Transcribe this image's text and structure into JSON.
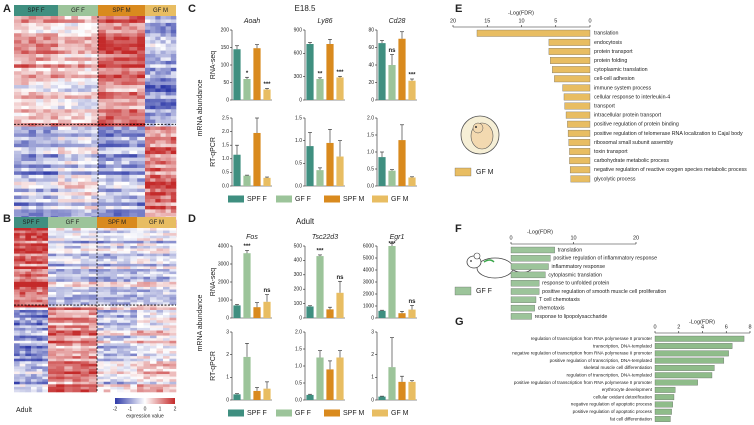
{
  "panel_labels": [
    "A",
    "B",
    "C",
    "D",
    "E",
    "F",
    "G"
  ],
  "heatmaps": [
    {
      "groups": [
        "SPF F",
        "GF F",
        "SPF M",
        "GF M"
      ],
      "stage": "E18.5",
      "colorbar_ticks": [
        -2,
        -1,
        0,
        1,
        2
      ],
      "colorbar_title": "expression value"
    },
    {
      "groups": [
        "SPF F",
        "GF F",
        "SPF M",
        "GF M"
      ],
      "stage": "Adult",
      "colorbar_ticks": [
        -2,
        -1,
        0,
        1,
        2
      ],
      "colorbar_title": "expression value"
    }
  ],
  "bar_panels": [
    {
      "title": "E18.5",
      "y_title": "mRNA abundance",
      "row_labels": [
        "RNA-seq",
        "RT-qPCR"
      ],
      "legend": [
        "SPF F",
        "GF F",
        "SPF M",
        "GF M"
      ],
      "colors": [
        "#3f8f80",
        "#9cc49a",
        "#d98a1e",
        "#e8bd62"
      ]
    },
    {
      "title": "Adult",
      "y_title": "mRNA abundance",
      "row_labels": [
        "RNA-seq",
        "RT-qPCR"
      ],
      "legend": [
        "SPF F",
        "GF F",
        "SPF M",
        "GF M"
      ],
      "colors": [
        "#3f8f80",
        "#9cc49a",
        "#d98a1e",
        "#e8bd62"
      ]
    }
  ],
  "chart_data": [
    {
      "type": "bar",
      "title": "Aoah",
      "values": [
        145,
        60,
        148,
        30
      ],
      "errors": [
        10,
        5,
        10,
        3
      ],
      "annotations": [
        null,
        "*",
        null,
        "***"
      ],
      "ylim": [
        0,
        200
      ],
      "yticks": [
        0,
        50,
        100,
        150,
        200
      ]
    },
    {
      "type": "bar",
      "title": "Ly86",
      "values": [
        720,
        270,
        720,
        290
      ],
      "errors": [
        20,
        15,
        60,
        15
      ],
      "annotations": [
        null,
        "**",
        null,
        "***"
      ],
      "ylim": [
        0,
        900
      ],
      "yticks": [
        0,
        300,
        600,
        900
      ]
    },
    {
      "type": "bar",
      "title": "Cd28",
      "values": [
        65,
        40,
        70,
        22
      ],
      "errors": [
        3,
        12,
        8,
        2
      ],
      "annotations": [
        null,
        "ns",
        null,
        "***"
      ],
      "ylim": [
        0,
        80
      ],
      "yticks": [
        0,
        20,
        40,
        60,
        80
      ]
    },
    {
      "type": "bar",
      "values": [
        1.15,
        0.38,
        1.95,
        0.3
      ],
      "errors": [
        0.35,
        0.02,
        0.55,
        0.03
      ],
      "ylim": [
        0,
        2.5
      ],
      "yticks": [
        {
          "value": 0,
          "label": "0.0"
        },
        0.5,
        {
          "value": 1,
          "label": "1.0"
        },
        1.5,
        {
          "value": 2,
          "label": "2.0"
        },
        2.5
      ]
    },
    {
      "type": "bar",
      "values": [
        0.88,
        0.35,
        0.95,
        0.65
      ],
      "errors": [
        0.3,
        0.05,
        0.3,
        0.35
      ],
      "ylim": [
        0,
        1.5
      ],
      "yticks": [
        {
          "value": 0,
          "label": "0.0"
        },
        0.5,
        {
          "value": 1,
          "label": "1.0"
        },
        1.5
      ]
    },
    {
      "type": "bar",
      "values": [
        0.85,
        0.45,
        1.35,
        0.25
      ],
      "errors": [
        0.15,
        0.03,
        0.45,
        0.02
      ],
      "ylim": [
        0,
        2
      ],
      "yticks": [
        {
          "value": 0,
          "label": "0.0"
        },
        0.5,
        {
          "value": 1,
          "label": "1.0"
        },
        1.5,
        {
          "value": 2,
          "label": "2.0"
        }
      ]
    },
    {
      "type": "bar",
      "title": "Fos",
      "values": [
        700,
        3600,
        600,
        900
      ],
      "errors": [
        50,
        150,
        250,
        400
      ],
      "annotations": [
        null,
        "***",
        null,
        "ns"
      ],
      "ylim": [
        0,
        4000
      ],
      "yticks": [
        0,
        1000,
        2000,
        3000,
        4000
      ]
    },
    {
      "type": "bar",
      "title": "Tsc22d3",
      "values": [
        80,
        430,
        60,
        175
      ],
      "errors": [
        5,
        8,
        15,
        80
      ],
      "annotations": [
        null,
        "***",
        null,
        "ns"
      ],
      "ylim": [
        0,
        500
      ],
      "yticks": [
        0,
        100,
        200,
        300,
        400,
        500
      ]
    },
    {
      "type": "bar",
      "title": "Egr1",
      "values": [
        600,
        6000,
        400,
        700
      ],
      "errors": [
        50,
        200,
        150,
        350
      ],
      "annotations": [
        null,
        "***",
        null,
        "ns"
      ],
      "ylim": [
        0,
        6000
      ],
      "yticks": [
        0,
        1000,
        2000,
        3000,
        4000,
        5000,
        6000
      ]
    },
    {
      "type": "bar",
      "values": [
        0.25,
        1.9,
        0.4,
        0.5
      ],
      "errors": [
        0.03,
        0.6,
        0.15,
        0.3
      ],
      "ylim": [
        0,
        3
      ],
      "yticks": [
        0,
        1,
        2,
        3
      ]
    },
    {
      "type": "bar",
      "values": [
        0.15,
        1.25,
        0.9,
        1.25
      ],
      "errors": [
        0.02,
        0.2,
        0.25,
        0.2
      ],
      "ylim": [
        0,
        2
      ],
      "yticks": [
        {
          "value": 0,
          "label": "0.0"
        },
        0.5,
        {
          "value": 1,
          "label": "1.0"
        },
        1.5,
        {
          "value": 2,
          "label": "2.0"
        }
      ]
    },
    {
      "type": "bar",
      "values": [
        0.15,
        1.45,
        0.8,
        0.8
      ],
      "errors": [
        0.02,
        1.3,
        0.25,
        0.05
      ],
      "ylim": [
        0,
        3
      ],
      "yticks": [
        0,
        1,
        2,
        3
      ]
    },
    {
      "type": "hbar",
      "xlabel": "-Log(FDR)",
      "legend_label": "GF M",
      "color": "#e8bd62",
      "xlim": [
        20,
        0
      ],
      "xticks": [
        20,
        15,
        10,
        5,
        0
      ],
      "categories": [
        "translation",
        "endocytosis",
        "protein transport",
        "protein folding",
        "cytoplasmic translation",
        "cell-cell adhesion",
        "immune system process",
        "cellular response to interleukin-4",
        "transport",
        "intracellular protein transport",
        "positive regulation of protein binding",
        "positive regulation of telomerase RNA localization to Cajal body",
        "ribosomal small subunit assembly",
        "toxin transport",
        "carbohydrate metabolic process",
        "negative regulation of reactive oxygen species metabolic process",
        "glycolytic process"
      ],
      "values": [
        16.5,
        6,
        6,
        5.8,
        5.5,
        5.2,
        4,
        3.8,
        3.7,
        3.5,
        3.3,
        3.2,
        3.1,
        3,
        3,
        2.9,
        2.8
      ]
    },
    {
      "type": "hbar",
      "xlabel": "-Log(FDR)",
      "legend_label": "GF F",
      "color": "#9cc49a",
      "xlim": [
        0,
        20
      ],
      "xticks": [
        0,
        10,
        20
      ],
      "categories": [
        "translation",
        "positive regulation of inflammatory response",
        "inflammatory response",
        "cytoplasmic translation",
        "response to unfolded protein",
        "positive regulation of smooth muscle cell proliferation",
        "T cell chemotaxis",
        "chemotaxis",
        "response to lipopolysaccharide"
      ],
      "values": [
        7,
        6.3,
        6,
        5.5,
        4.5,
        4.5,
        4,
        3.8,
        3.3
      ]
    },
    {
      "type": "hbar",
      "xlabel": "-Log(FDR)",
      "color": "#8fbc8a",
      "xlim": [
        0,
        8
      ],
      "xticks": [
        0,
        2,
        4,
        6,
        8
      ],
      "categories": [
        "regulation of transcription from RNA polymerase II promoter",
        "transcription, DNA-templated",
        "negative regulation of transcription from RNA polymerase II promoter",
        "positive regulation of transcription, DNA-templated",
        "skeletal muscle cell differentiation",
        "regulation of transcription, DNA-templated",
        "positive regulation of transcription from RNA polymerase II promoter",
        "erythrocyte development",
        "cellular oxidant detoxification",
        "negative regulation of apoptotic process",
        "positive regulation of apoptotic process",
        "fat cell differentiation"
      ],
      "values": [
        7.5,
        6.5,
        6.2,
        5.8,
        5,
        4.8,
        3.6,
        1.7,
        1.6,
        1.5,
        1.4,
        1.3
      ]
    }
  ]
}
